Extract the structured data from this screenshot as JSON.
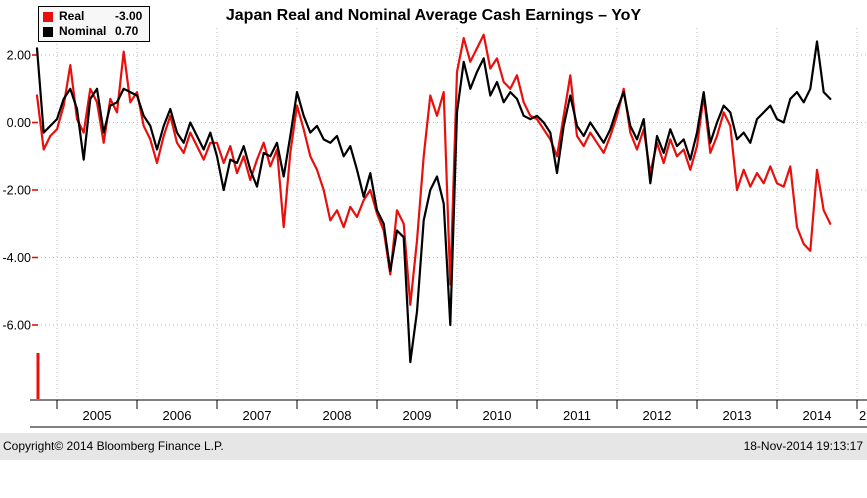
{
  "title": "Japan Real and Nominal Average Cash Earnings – YoY",
  "legend": {
    "items": [
      {
        "label": "Real",
        "value": "-3.00",
        "color": "#e8100c"
      },
      {
        "label": "Nominal",
        "value": "0.70",
        "color": "#000000"
      }
    ]
  },
  "footer": {
    "copyright": "Copyright© 2014 Bloomberg Finance L.P.",
    "timestamp": "18-Nov-2014 19:13:17"
  },
  "chart_data": {
    "type": "line",
    "title": "Japan Real and Nominal Average Cash Earnings – YoY",
    "xlabel": "",
    "ylabel": "",
    "x_unit": "month",
    "x_range": [
      "2004-10",
      "2014-09"
    ],
    "x_tick_labels": [
      "2005",
      "2006",
      "2007",
      "2008",
      "2009",
      "2010",
      "2011",
      "2012",
      "2013",
      "2014"
    ],
    "x_partial_next_label": "2",
    "y_ticks": [
      2,
      0,
      -2,
      -4,
      -6
    ],
    "y_tick_labels": [
      "2.00",
      "0.00",
      "-2.00",
      "-4.00",
      "-6.00"
    ],
    "ylim": [
      -8.2,
      2.8
    ],
    "grid": "dotted",
    "legend_position": "top-left",
    "axis_tick_color": "#e8100c",
    "series": [
      {
        "name": "Real",
        "color": "#e8100c",
        "last_value": -3.0,
        "values": [
          0.8,
          -0.8,
          -0.4,
          -0.2,
          0.5,
          1.7,
          0.1,
          -0.3,
          1.0,
          0.6,
          -0.6,
          0.7,
          0.3,
          2.1,
          0.6,
          0.9,
          -0.1,
          -0.5,
          -1.2,
          -0.4,
          0.2,
          -0.6,
          -0.9,
          -0.3,
          -0.7,
          -1.1,
          -0.6,
          -0.6,
          -1.2,
          -0.7,
          -1.5,
          -1.0,
          -1.7,
          -1.1,
          -0.6,
          -1.3,
          -0.8,
          -3.1,
          -0.9,
          0.5,
          -0.2,
          -1.0,
          -1.4,
          -2.0,
          -2.9,
          -2.6,
          -3.1,
          -2.5,
          -2.8,
          -2.3,
          -2.0,
          -2.7,
          -3.2,
          -4.5,
          -2.6,
          -3.0,
          -5.4,
          -3.5,
          -1.0,
          0.8,
          0.2,
          0.9,
          -4.8,
          1.5,
          2.5,
          1.8,
          2.2,
          2.6,
          1.6,
          1.9,
          1.2,
          1.0,
          1.4,
          0.6,
          0.2,
          0.1,
          -0.2,
          -0.5,
          -1.0,
          0.2,
          1.4,
          -0.4,
          -0.7,
          -0.3,
          -0.6,
          -0.9,
          -0.4,
          0.2,
          1.0,
          -0.3,
          -0.8,
          -0.2,
          -1.5,
          -0.6,
          -1.2,
          -0.5,
          -1.0,
          -0.8,
          -1.4,
          -0.7,
          0.8,
          -0.9,
          -0.4,
          0.3,
          -0.1,
          -2.0,
          -1.4,
          -1.9,
          -1.5,
          -1.8,
          -1.3,
          -1.8,
          -1.9,
          -1.3,
          -3.1,
          -3.6,
          -3.8,
          -1.4,
          -2.6,
          -3.0
        ]
      },
      {
        "name": "Nominal",
        "color": "#000000",
        "last_value": 0.7,
        "values": [
          2.2,
          -0.3,
          -0.1,
          0.1,
          0.7,
          1.0,
          0.4,
          -1.1,
          0.7,
          1.0,
          -0.3,
          0.5,
          0.6,
          1.0,
          0.9,
          0.8,
          0.2,
          -0.1,
          -0.8,
          -0.1,
          0.4,
          -0.3,
          -0.6,
          0.0,
          -0.4,
          -0.8,
          -0.3,
          -1.0,
          -2.0,
          -1.1,
          -1.2,
          -0.7,
          -1.4,
          -1.9,
          -0.9,
          -1.0,
          -0.6,
          -1.6,
          -0.4,
          0.9,
          0.2,
          -0.3,
          -0.1,
          -0.5,
          -0.6,
          -0.4,
          -1.0,
          -0.7,
          -1.4,
          -2.2,
          -1.5,
          -2.6,
          -3.0,
          -4.4,
          -3.2,
          -3.4,
          -7.1,
          -5.6,
          -2.9,
          -2.0,
          -1.6,
          -2.4,
          -6.0,
          0.3,
          1.8,
          1.0,
          1.5,
          1.9,
          0.8,
          1.2,
          0.6,
          0.9,
          0.7,
          0.2,
          0.1,
          0.2,
          0.0,
          -0.3,
          -1.5,
          -0.1,
          0.8,
          -0.1,
          -0.4,
          0.0,
          -0.3,
          -0.6,
          -0.2,
          0.4,
          0.9,
          -0.1,
          -0.5,
          0.1,
          -1.8,
          -0.4,
          -0.9,
          -0.2,
          -0.7,
          -0.5,
          -1.1,
          -0.3,
          0.9,
          -0.6,
          0.0,
          0.5,
          0.3,
          -0.5,
          -0.3,
          -0.6,
          0.1,
          0.3,
          0.5,
          0.1,
          0.0,
          0.7,
          0.9,
          0.6,
          1.0,
          2.4,
          0.9,
          0.7
        ]
      }
    ]
  }
}
